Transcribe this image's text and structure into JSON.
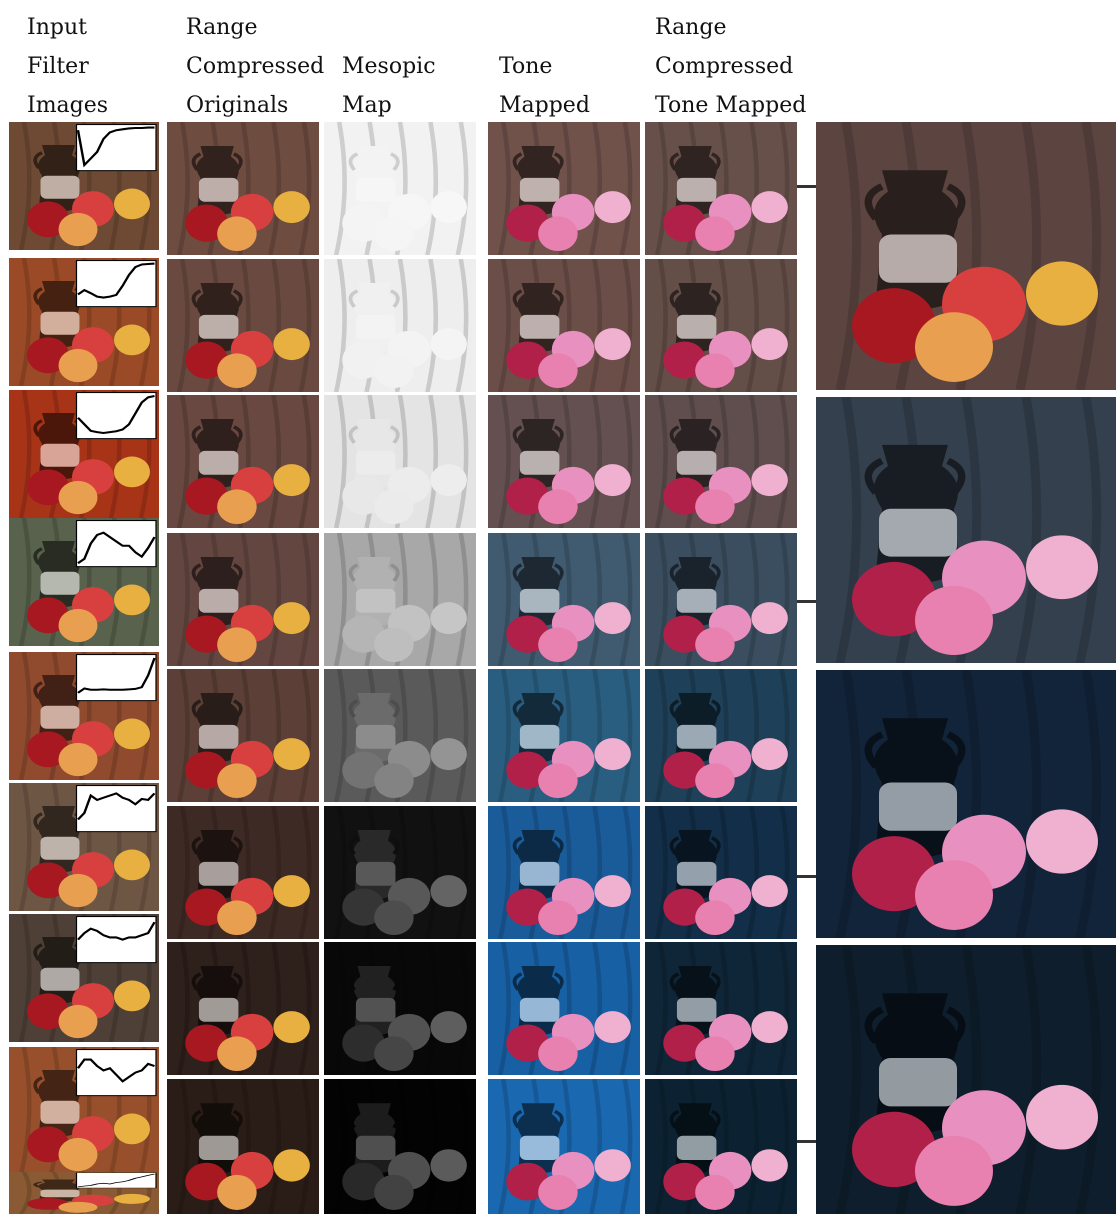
{
  "headers": {
    "input": [
      "Input",
      "Filter",
      "Images"
    ],
    "range_originals": [
      "Range",
      "Compressed",
      "Originals"
    ],
    "mesopic": [
      "",
      "Mesopic",
      "Map"
    ],
    "tone": [
      "",
      "Tone",
      "Mapped"
    ],
    "range_tone": [
      "Range",
      "Compressed",
      "Tone Mapped"
    ]
  },
  "filter_curves": [
    [
      0.1,
      0.9,
      0.75,
      0.6,
      0.3,
      0.15,
      0.1,
      0.08,
      0.06,
      0.05,
      0.05,
      0.04,
      0.04
    ],
    [
      0.75,
      0.65,
      0.72,
      0.8,
      0.82,
      0.8,
      0.76,
      0.55,
      0.3,
      0.12,
      0.06,
      0.05,
      0.04
    ],
    [
      0.55,
      0.7,
      0.85,
      0.88,
      0.9,
      0.88,
      0.86,
      0.82,
      0.7,
      0.45,
      0.2,
      0.08,
      0.05
    ],
    [
      0.95,
      0.85,
      0.5,
      0.3,
      0.25,
      0.35,
      0.45,
      0.55,
      0.55,
      0.7,
      0.8,
      0.6,
      0.35
    ],
    [
      0.85,
      0.75,
      0.78,
      0.78,
      0.77,
      0.78,
      0.78,
      0.78,
      0.77,
      0.76,
      0.72,
      0.45,
      0.05
    ],
    [
      0.75,
      0.6,
      0.2,
      0.3,
      0.25,
      0.2,
      0.15,
      0.25,
      0.3,
      0.4,
      0.28,
      0.3,
      0.15
    ],
    [
      0.5,
      0.35,
      0.25,
      0.3,
      0.4,
      0.45,
      0.45,
      0.5,
      0.45,
      0.45,
      0.4,
      0.35,
      0.1
    ],
    [
      0.4,
      0.2,
      0.2,
      0.35,
      0.45,
      0.4,
      0.55,
      0.7,
      0.6,
      0.5,
      0.45,
      0.3,
      0.35
    ],
    [
      0.95,
      0.9,
      0.85,
      0.75,
      0.7,
      0.75,
      0.65,
      0.6,
      0.5,
      0.35,
      0.25,
      0.15,
      0.05
    ]
  ],
  "colors": {
    "input_bg": [
      "#6e4a34",
      "#9a4a26",
      "#a83418",
      "#58624c",
      "#904a2e",
      "#6e5644",
      "#4e4036",
      "#98502c",
      "#8a5a34"
    ],
    "orig_bg": [
      "#6e4c40",
      "#6a4a40",
      "#684840",
      "#644640",
      "#5c4038",
      "#3e2a24",
      "#2e201a",
      "#2a1c16"
    ],
    "meso_bg": [
      "#f2f2f2",
      "#eeeeee",
      "#e4e4e4",
      "#a8a8a8",
      "#5a5a5a",
      "#111111",
      "#080808",
      "#030303"
    ],
    "tone_bg": [
      "#70524a",
      "#6c4e48",
      "#645050",
      "#405a70",
      "#2a5e80",
      "#1a5c9a",
      "#1860a4",
      "#1a68b0"
    ],
    "rct_bg": [
      "#68504a",
      "#644e48",
      "#604e4e",
      "#3a4e60",
      "#1e4058",
      "#122e48",
      "#0e2638",
      "#0c2232"
    ],
    "large_bg": [
      "#5c4440",
      "#34404e",
      "#12243a",
      "#0e1e2c"
    ]
  }
}
